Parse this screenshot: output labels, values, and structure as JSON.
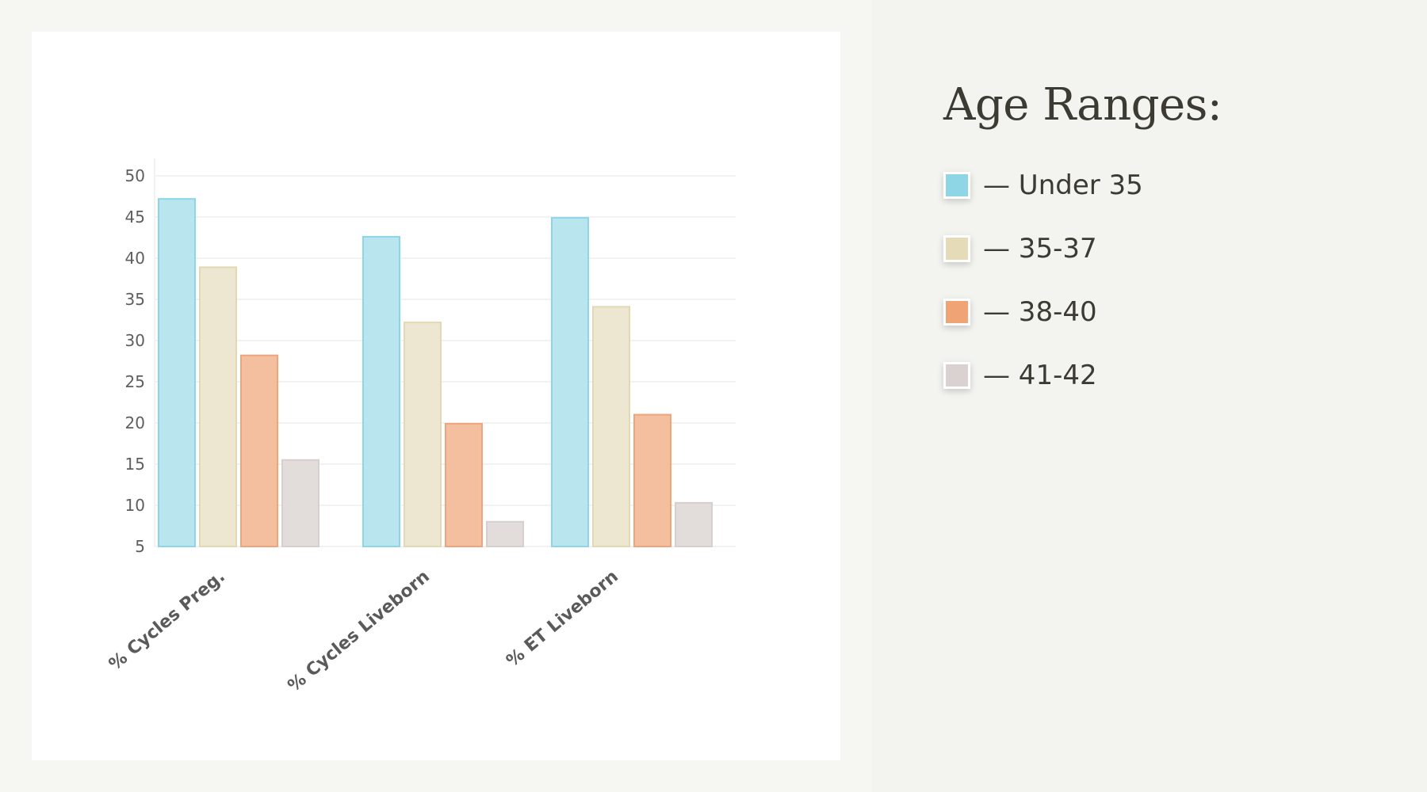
{
  "chart_data": {
    "type": "bar",
    "categories": [
      "% Cycles Preg.",
      "% Cycles Liveborn",
      "% ET Liveborn"
    ],
    "series": [
      {
        "name": "Under 35",
        "values": [
          47.2,
          42.6,
          44.9
        ],
        "fill": "#b9e5ee",
        "stroke": "#8ed6e6"
      },
      {
        "name": "35-37",
        "values": [
          38.9,
          32.2,
          34.1
        ],
        "fill": "#ede6d0",
        "stroke": "#e2d8b4"
      },
      {
        "name": "38-40",
        "values": [
          28.2,
          19.9,
          21.0
        ],
        "fill": "#f4bf9f",
        "stroke": "#eea47c"
      },
      {
        "name": "41-42",
        "values": [
          15.5,
          8.0,
          10.3
        ],
        "fill": "#e2dcdb",
        "stroke": "#d6cfce"
      }
    ],
    "yticks": [
      5,
      10,
      15,
      20,
      25,
      30,
      35,
      40,
      45,
      50
    ],
    "ylim": [
      5,
      50
    ],
    "grid": true,
    "legend_position": "right"
  },
  "legend": {
    "title": "Age Ranges:",
    "items": [
      {
        "label": "— Under 35",
        "color": "#8ed6e6"
      },
      {
        "label": "— 35-37",
        "color": "#e6dbb8"
      },
      {
        "label": "— 38-40",
        "color": "#f0a476"
      },
      {
        "label": "— 41-42",
        "color": "#d9d2d1"
      }
    ]
  }
}
